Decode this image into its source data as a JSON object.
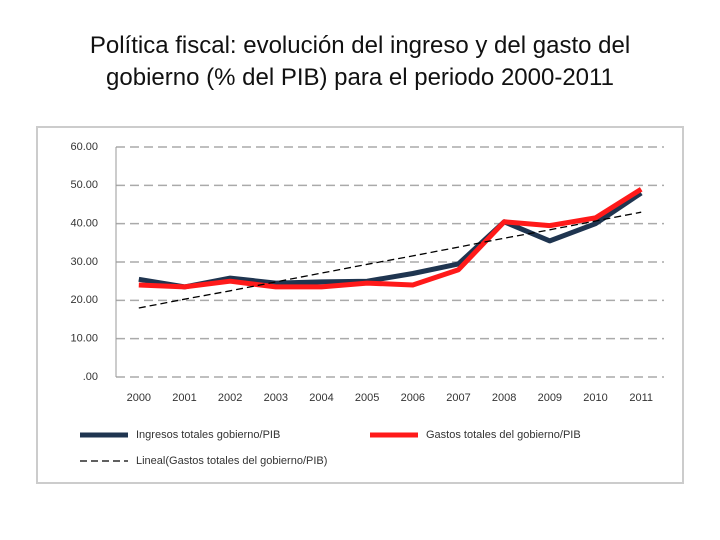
{
  "chart_data": {
    "type": "line",
    "title": "Política fiscal: evolución del ingreso y del gasto del gobierno (% del PIB) para el periodo 2000-2011",
    "categories": [
      "2000",
      "2001",
      "2002",
      "2003",
      "2004",
      "2005",
      "2006",
      "2007",
      "2008",
      "2009",
      "2010",
      "2011"
    ],
    "series": [
      {
        "name": "Ingresos totales gobierno/PIB",
        "color": "#1f3550",
        "dashed": false,
        "values": [
          25.5,
          23.5,
          25.8,
          24.5,
          24.8,
          25.0,
          27.0,
          29.5,
          40.5,
          35.5,
          40.0,
          48.0
        ]
      },
      {
        "name": "Gastos totales del gobierno/PIB",
        "color": "#ff1a1a",
        "dashed": false,
        "values": [
          24.0,
          23.5,
          25.0,
          23.5,
          23.5,
          24.5,
          24.0,
          28.0,
          40.5,
          39.5,
          41.5,
          49.0
        ]
      },
      {
        "name": "Lineal(Gastos totales del gobierno/PIB)",
        "color": "#000000",
        "dashed": true,
        "values": [
          18.0,
          20.3,
          22.5,
          24.8,
          27.1,
          29.4,
          31.6,
          33.9,
          36.2,
          38.4,
          40.7,
          43.0
        ]
      }
    ],
    "ylim": [
      0,
      60
    ],
    "yticks": [
      {
        "value": 0,
        "label": ".00"
      },
      {
        "value": 10,
        "label": "10.00"
      },
      {
        "value": 20,
        "label": "20.00"
      },
      {
        "value": 30,
        "label": "30.00"
      },
      {
        "value": 40,
        "label": "40.00"
      },
      {
        "value": 50,
        "label": "50.00"
      },
      {
        "value": 60,
        "label": "60.00"
      }
    ],
    "grid": true
  }
}
